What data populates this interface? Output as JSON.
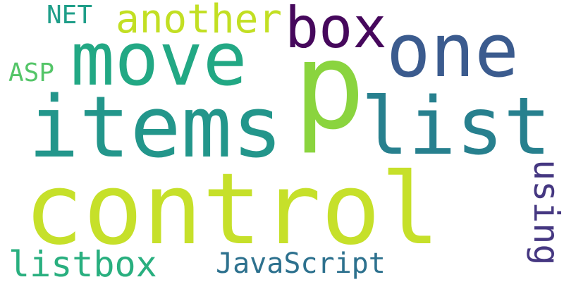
{
  "words": [
    {
      "text": "control",
      "color": "#c6e02a"
    },
    {
      "text": "p",
      "color": "#8ad43e"
    },
    {
      "text": "items",
      "color": "#23968b"
    },
    {
      "text": "move",
      "color": "#22a884"
    },
    {
      "text": "list",
      "color": "#27808e"
    },
    {
      "text": "one",
      "color": "#3b5b8e"
    },
    {
      "text": "box",
      "color": "#46085c"
    },
    {
      "text": "another",
      "color": "#c2df23"
    },
    {
      "text": "listbox",
      "color": "#29af7f"
    },
    {
      "text": "JavaScript",
      "color": "#2d718e"
    },
    {
      "text": "using",
      "color": "#453781"
    },
    {
      "text": "NET",
      "color": "#1f9e89"
    },
    {
      "text": "ASP",
      "color": "#54c568"
    }
  ]
}
